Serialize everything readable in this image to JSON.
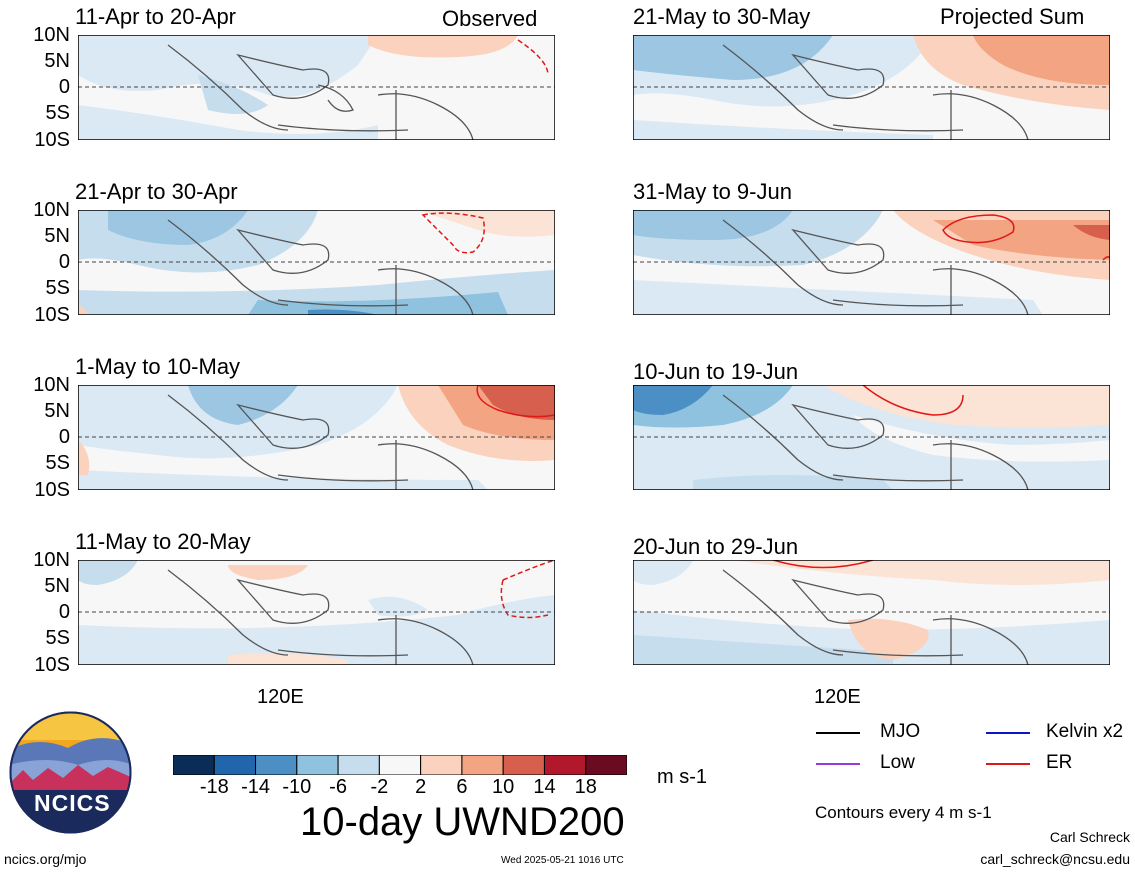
{
  "header": {
    "left_tag": "Observed",
    "right_tag": "Projected Sum"
  },
  "panels": [
    {
      "title": "11-Apr to 20-Apr"
    },
    {
      "title": "21-Apr to 30-Apr"
    },
    {
      "title": "1-May to 10-May"
    },
    {
      "title": "11-May to 20-May"
    },
    {
      "title": "21-May to 30-May"
    },
    {
      "title": "31-May to 9-Jun"
    },
    {
      "title": "10-Jun to 19-Jun"
    },
    {
      "title": "20-Jun to 29-Jun"
    }
  ],
  "lat_labels": [
    "10N",
    "5N",
    "0",
    "5S",
    "10S"
  ],
  "lon_label": "120E",
  "colorbar": {
    "unit": "m s-1",
    "ticks": [
      "-18",
      "-14",
      "-10",
      "-6",
      "-2",
      "2",
      "6",
      "10",
      "14",
      "18"
    ],
    "colors": [
      "#0a2d57",
      "#2166ac",
      "#4b8fc4",
      "#8ec2de",
      "#c6ddee",
      "#f7f7f7",
      "#fbd2bd",
      "#f3a483",
      "#d6604d",
      "#b2182b",
      "#6b0b22"
    ]
  },
  "legend": {
    "items": [
      {
        "label": "MJO",
        "color": "#000000"
      },
      {
        "label": "Kelvin x2",
        "color": "#0b17c4"
      },
      {
        "label": "Low",
        "color": "#9a3ad8"
      },
      {
        "label": "ER",
        "color": "#e01818"
      }
    ],
    "note": "Contours every 4 m s-1"
  },
  "footer": {
    "big_title": "10-day UWND200",
    "logo_text": "NCICS",
    "site": "ncics.org/mjo",
    "timestamp": "Wed 2025-05-21 1016 UTC",
    "author": "Carl Schreck",
    "email": "carl_schreck@ncsu.edu"
  }
}
